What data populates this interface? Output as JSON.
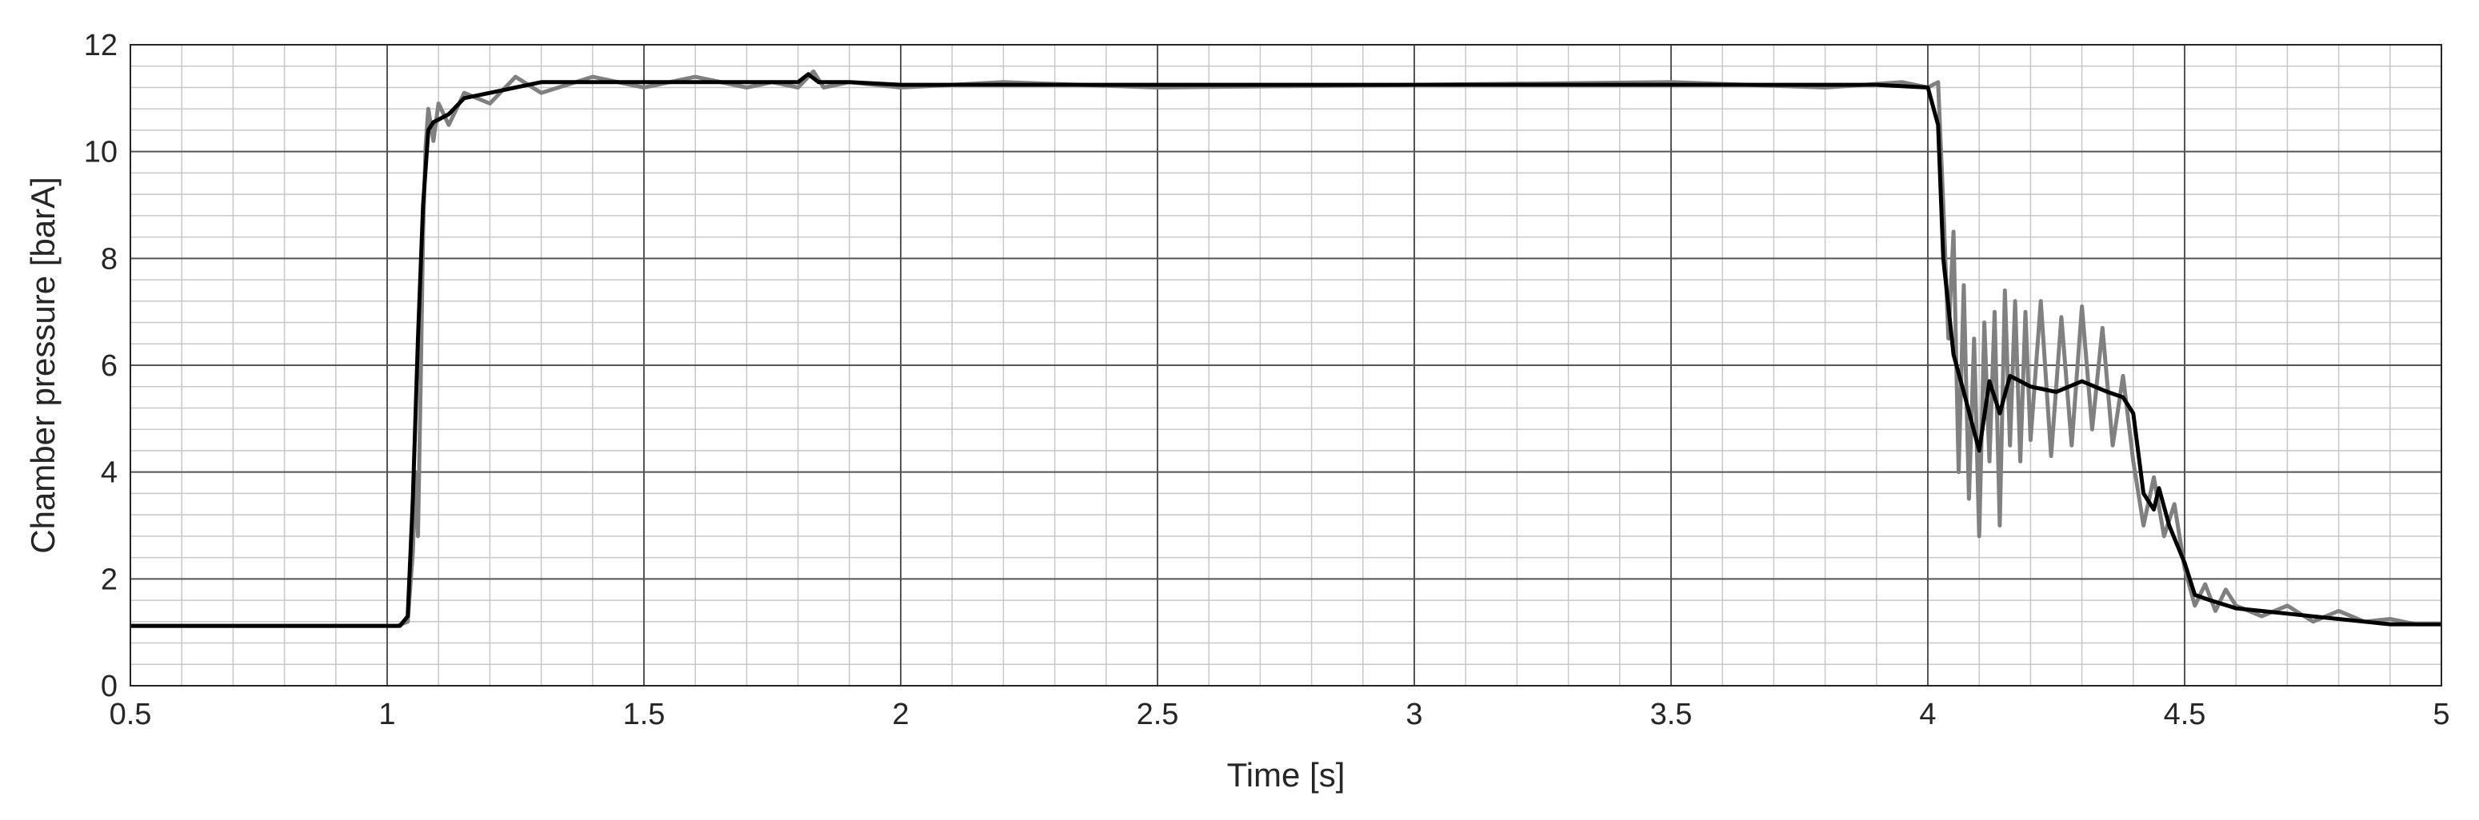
{
  "chart_data": {
    "type": "line",
    "title": "",
    "xlabel": "Time [s]",
    "ylabel": "Chamber pressure [barA]",
    "xlim": [
      0.5,
      5
    ],
    "ylim": [
      0,
      12
    ],
    "xticks": [
      0.5,
      1,
      1.5,
      2,
      2.5,
      3,
      3.5,
      4,
      4.5,
      5
    ],
    "xtick_labels": [
      "0.5",
      "1",
      "1.5",
      "2",
      "2.5",
      "3",
      "3.5",
      "4",
      "4.5",
      "5"
    ],
    "yticks": [
      0,
      2,
      4,
      6,
      8,
      10,
      12
    ],
    "ytick_labels": [
      "0",
      "2",
      "4",
      "6",
      "8",
      "10",
      "12"
    ],
    "grid": true,
    "minor_grid": true,
    "legend": "none",
    "series": [
      {
        "color": "#808080",
        "x": [
          0.5,
          1.0,
          1.02,
          1.04,
          1.05,
          1.055,
          1.06,
          1.065,
          1.07,
          1.075,
          1.08,
          1.09,
          1.1,
          1.12,
          1.15,
          1.2,
          1.25,
          1.3,
          1.4,
          1.5,
          1.6,
          1.7,
          1.75,
          1.8,
          1.83,
          1.85,
          1.9,
          2.0,
          2.2,
          2.5,
          3.0,
          3.5,
          3.8,
          3.95,
          4.0,
          4.02,
          4.03,
          4.04,
          4.05,
          4.06,
          4.07,
          4.08,
          4.09,
          4.1,
          4.11,
          4.12,
          4.13,
          4.14,
          4.15,
          4.16,
          4.17,
          4.18,
          4.19,
          4.2,
          4.22,
          4.24,
          4.26,
          4.28,
          4.3,
          4.32,
          4.34,
          4.36,
          4.38,
          4.4,
          4.42,
          4.44,
          4.46,
          4.48,
          4.5,
          4.52,
          4.54,
          4.56,
          4.58,
          4.6,
          4.65,
          4.7,
          4.75,
          4.8,
          4.85,
          4.9,
          4.95,
          5.0
        ],
        "y": [
          1.12,
          1.12,
          1.12,
          1.2,
          2.5,
          4.0,
          2.8,
          5.5,
          8.5,
          10.1,
          10.8,
          10.2,
          10.9,
          10.5,
          11.1,
          10.9,
          11.4,
          11.1,
          11.4,
          11.2,
          11.4,
          11.2,
          11.3,
          11.2,
          11.5,
          11.2,
          11.3,
          11.2,
          11.3,
          11.2,
          11.25,
          11.3,
          11.2,
          11.3,
          11.2,
          11.3,
          9.0,
          6.5,
          8.5,
          4.0,
          7.5,
          3.5,
          6.5,
          2.8,
          6.8,
          4.2,
          7.0,
          3.0,
          7.4,
          4.5,
          7.2,
          4.2,
          7.0,
          4.6,
          7.2,
          4.3,
          6.9,
          4.5,
          7.1,
          4.8,
          6.7,
          4.5,
          5.8,
          4.2,
          3.0,
          3.9,
          2.8,
          3.4,
          2.2,
          1.5,
          1.9,
          1.4,
          1.8,
          1.5,
          1.3,
          1.5,
          1.2,
          1.4,
          1.2,
          1.25,
          1.15,
          1.15
        ]
      },
      {
        "color": "#000000",
        "x": [
          0.5,
          1.0,
          1.025,
          1.04,
          1.05,
          1.06,
          1.07,
          1.08,
          1.09,
          1.1,
          1.12,
          1.15,
          1.2,
          1.3,
          1.4,
          1.6,
          1.8,
          1.82,
          1.84,
          1.9,
          2.0,
          2.5,
          3.0,
          3.5,
          3.9,
          4.0,
          4.02,
          4.03,
          4.05,
          4.07,
          4.1,
          4.12,
          4.14,
          4.16,
          4.18,
          4.2,
          4.25,
          4.3,
          4.35,
          4.38,
          4.4,
          4.42,
          4.44,
          4.45,
          4.47,
          4.5,
          4.52,
          4.55,
          4.6,
          4.7,
          4.8,
          4.85,
          4.9,
          4.95,
          5.0
        ],
        "y": [
          1.12,
          1.12,
          1.12,
          1.3,
          3.5,
          6.5,
          9.0,
          10.4,
          10.55,
          10.6,
          10.7,
          11.0,
          11.1,
          11.3,
          11.3,
          11.3,
          11.3,
          11.45,
          11.3,
          11.3,
          11.25,
          11.25,
          11.25,
          11.25,
          11.25,
          11.2,
          10.5,
          8.0,
          6.2,
          5.5,
          4.4,
          5.7,
          5.1,
          5.8,
          5.7,
          5.6,
          5.5,
          5.7,
          5.5,
          5.4,
          5.1,
          3.6,
          3.3,
          3.7,
          3.0,
          2.3,
          1.7,
          1.6,
          1.45,
          1.35,
          1.25,
          1.2,
          1.15,
          1.15,
          1.15
        ]
      }
    ]
  }
}
